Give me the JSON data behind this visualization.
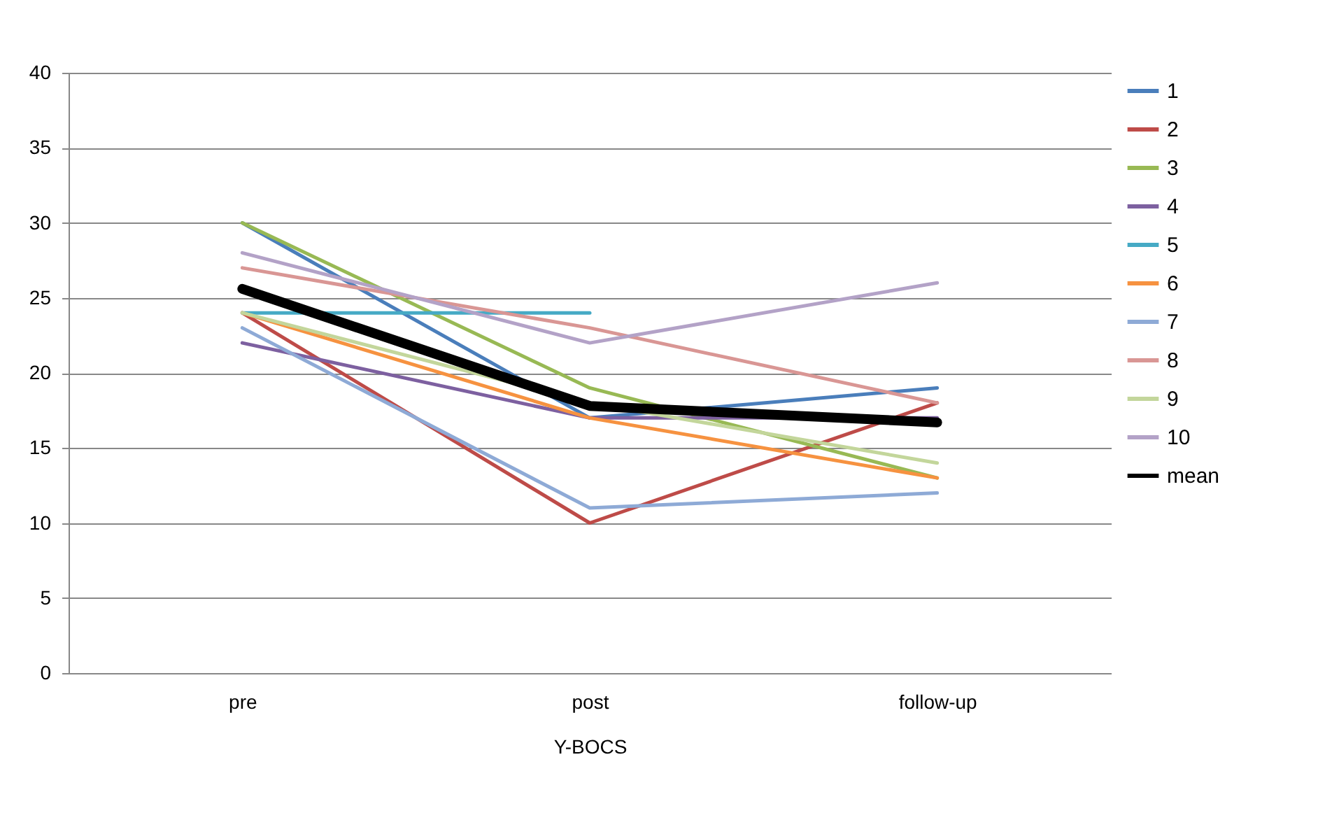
{
  "chart_data": {
    "type": "line",
    "xlabel": "Y-BOCS",
    "categories": [
      "pre",
      "post",
      "follow-up"
    ],
    "series": [
      {
        "name": "1",
        "color": "#4a7ebb",
        "values": [
          30,
          17,
          19
        ]
      },
      {
        "name": "2",
        "color": "#be4b48",
        "values": [
          24,
          10,
          18
        ]
      },
      {
        "name": "3",
        "color": "#98b954",
        "values": [
          30,
          19,
          13
        ]
      },
      {
        "name": "4",
        "color": "#7d60a0",
        "values": [
          22,
          17,
          17
        ]
      },
      {
        "name": "5",
        "color": "#46aac5",
        "values": [
          24,
          24,
          null
        ]
      },
      {
        "name": "6",
        "color": "#f69240",
        "values": [
          24,
          17,
          13
        ]
      },
      {
        "name": "7",
        "color": "#8eaad6",
        "values": [
          23,
          11,
          12
        ]
      },
      {
        "name": "8",
        "color": "#d99694",
        "values": [
          27,
          23,
          18
        ]
      },
      {
        "name": "9",
        "color": "#c3d69b",
        "values": [
          24,
          18,
          14
        ]
      },
      {
        "name": "10",
        "color": "#b3a2c7",
        "values": [
          28,
          22,
          26
        ]
      },
      {
        "name": "mean",
        "color": "#000000",
        "values": [
          25.6,
          17.8,
          16.7
        ]
      }
    ],
    "ylim": [
      0,
      40
    ],
    "yticks": [
      0,
      5,
      10,
      15,
      20,
      25,
      30,
      35,
      40
    ],
    "grid": "y",
    "legend": "right",
    "marker": "none",
    "line_style": "solid"
  }
}
